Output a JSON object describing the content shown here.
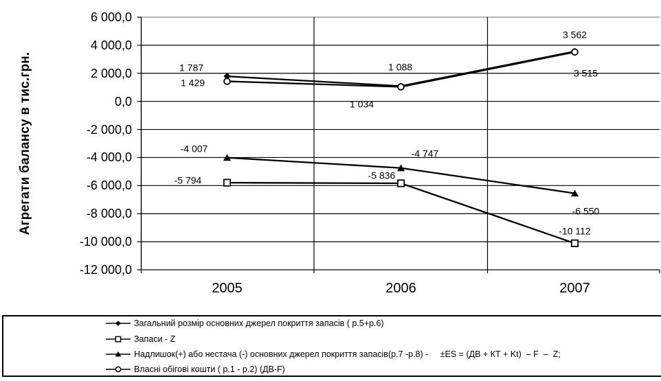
{
  "chart_data": {
    "type": "line",
    "title": "",
    "xlabel": "",
    "ylabel": "Агрегати балансу в тис.грн.",
    "categories": [
      "2005",
      "2006",
      "2007"
    ],
    "ylim": [
      -12000,
      6000
    ],
    "ytick_step": 2000,
    "ytick_labels": [
      "6 000,0",
      "4 000,0",
      "2 000,0",
      "0,0",
      "-2 000,0",
      "-4 000,0",
      "-6 000,0",
      "-8 000,0",
      "-10 000,0",
      "-12 000,0"
    ],
    "grid": "horizontal gridlines on, vertical gridlines at category boundaries",
    "legend_position": "bottom-box-full-width",
    "colors": {
      "series_line": "#000000",
      "gridline": "#000000",
      "plot_top_border": "#888888",
      "background": "#ffffff",
      "legend_border": "#000000"
    },
    "series": [
      {
        "name": "Загальний розмір основних джерел покриття запасів ( р.5+р.6)",
        "marker": "diamond-filled",
        "values": [
          1787,
          1088,
          3562
        ],
        "labels": [
          "1 787",
          "1 088",
          "3 562"
        ],
        "label_offsets": [
          [
            -52,
            -12
          ],
          [
            -1,
            -27
          ],
          [
            0,
            -24
          ]
        ]
      },
      {
        "name": "Запаси - Z",
        "marker": "square-open",
        "values": [
          -5794,
          -5836,
          -10112
        ],
        "labels": [
          "-5 794",
          "-5 836",
          "-10 112"
        ],
        "label_offsets": [
          [
            -57,
            -3
          ],
          [
            -28,
            -11
          ],
          [
            0,
            -17
          ]
        ]
      },
      {
        "name": "Надлишок(+) або нестача (-) основних джерел покриття запасів(р.7 -р.8) -     ±ES = (ДВ + КТ + Kt)  – F  –  Z;",
        "marker": "triangle-filled",
        "values": [
          -4007,
          -4747,
          -6550
        ],
        "labels": [
          "-4 007",
          "-4 747",
          "-6 550"
        ],
        "label_offsets": [
          [
            -48,
            -13
          ],
          [
            35,
            -21
          ],
          [
            16,
            26
          ]
        ]
      },
      {
        "name": "Власні обігові кошти ( р.1 - р.2) (ДВ-F)",
        "marker": "circle-open",
        "values": [
          1429,
          1034,
          3515
        ],
        "labels": [
          "1 429",
          "1 034",
          "3 515"
        ],
        "label_offsets": [
          [
            -50,
            3
          ],
          [
            -57,
            25
          ],
          [
            16,
            31
          ]
        ]
      }
    ]
  }
}
